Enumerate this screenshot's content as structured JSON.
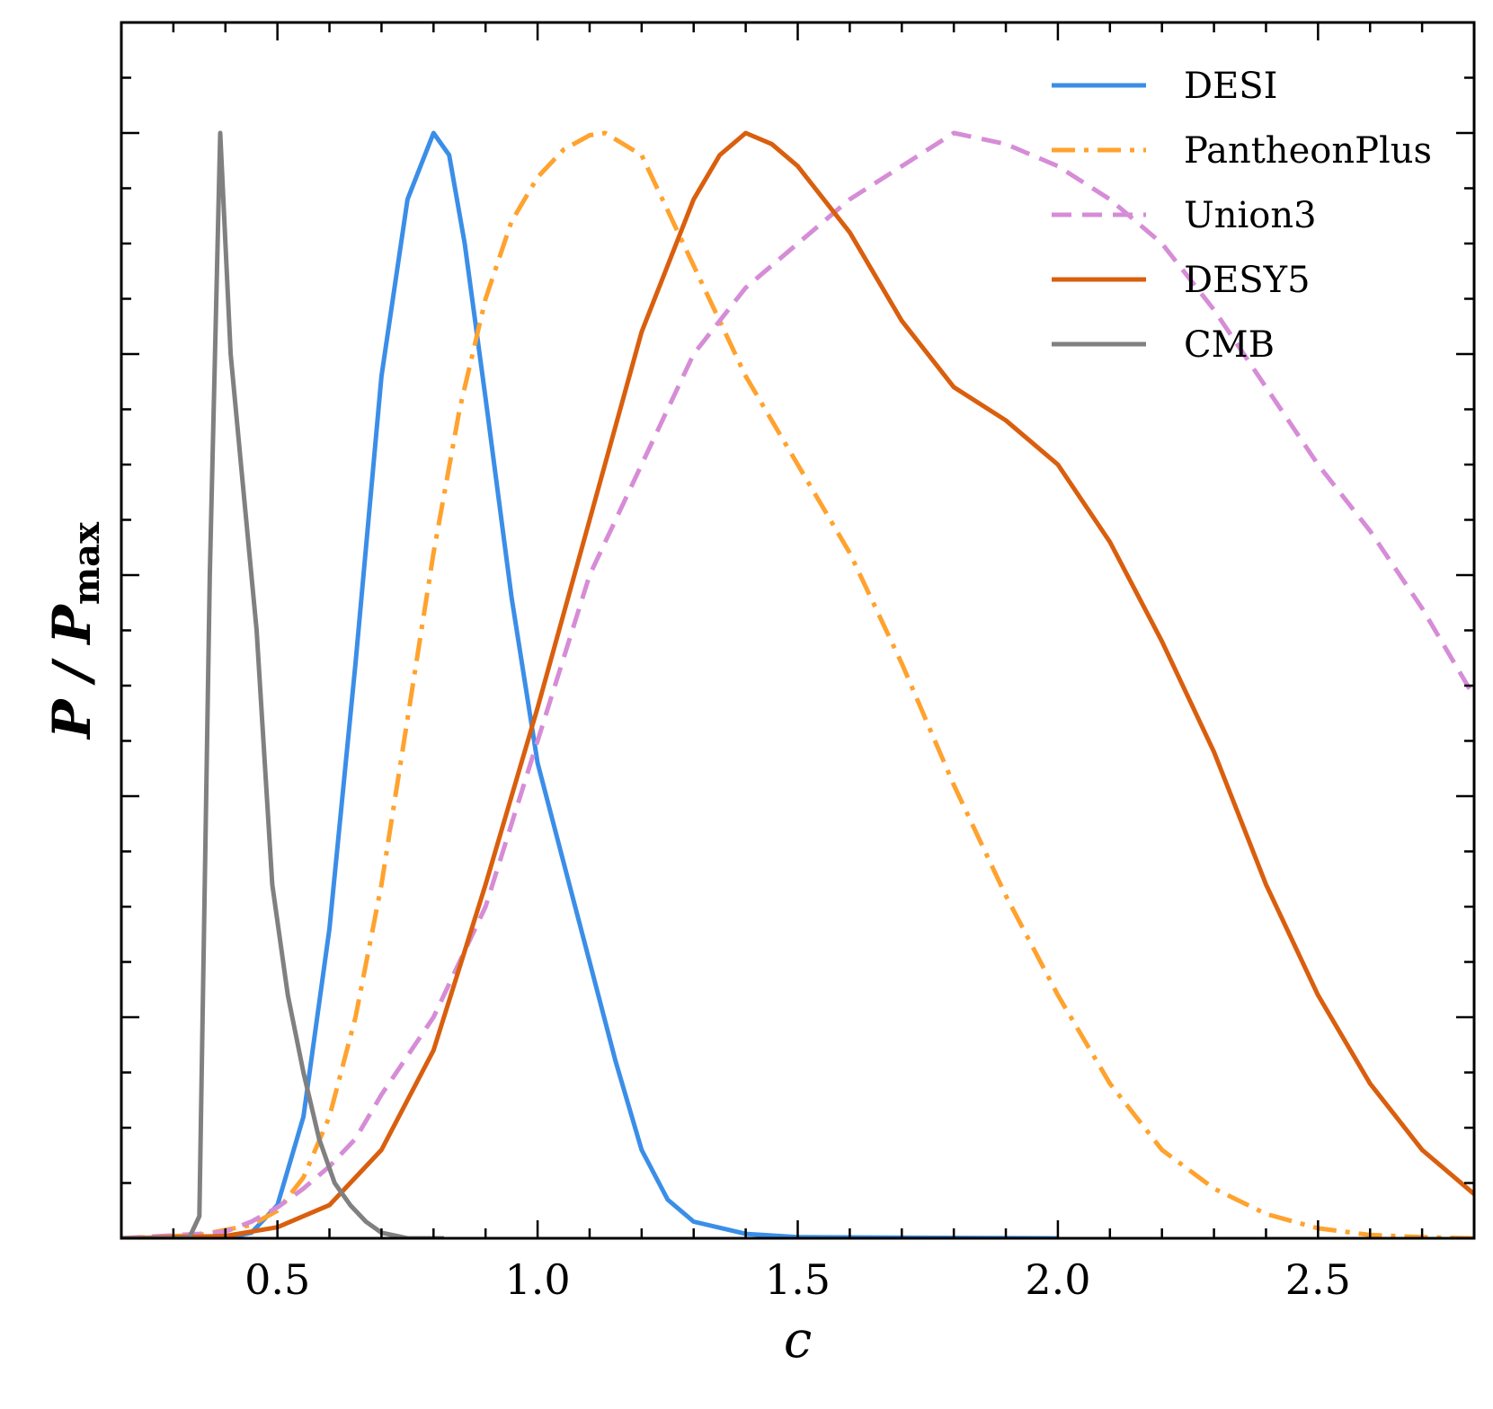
{
  "chart_data": {
    "type": "line",
    "title": "",
    "xlabel": "c",
    "ylabel": "P / P",
    "ylabel_subscript": "max",
    "xlim": [
      0.2,
      2.8
    ],
    "ylim": [
      0,
      1.1
    ],
    "xticks": [
      0.5,
      1.0,
      1.5,
      2.0,
      2.5
    ],
    "xtick_labels": [
      "0.5",
      "1.0",
      "1.5",
      "2.0",
      "2.5"
    ],
    "y_tick_labels_shown": false,
    "grid": false,
    "legend_position": "top-right",
    "series": [
      {
        "name": "DESI",
        "color": "#3b8ee8",
        "style": "solid",
        "points": [
          [
            0.2,
            0
          ],
          [
            0.4,
            0
          ],
          [
            0.45,
            0.005
          ],
          [
            0.5,
            0.03
          ],
          [
            0.55,
            0.11
          ],
          [
            0.6,
            0.28
          ],
          [
            0.65,
            0.52
          ],
          [
            0.7,
            0.78
          ],
          [
            0.75,
            0.94
          ],
          [
            0.8,
            1.0
          ],
          [
            0.83,
            0.98
          ],
          [
            0.86,
            0.9
          ],
          [
            0.9,
            0.76
          ],
          [
            0.95,
            0.58
          ],
          [
            1.0,
            0.43
          ],
          [
            1.05,
            0.34
          ],
          [
            1.1,
            0.25
          ],
          [
            1.15,
            0.16
          ],
          [
            1.2,
            0.08
          ],
          [
            1.25,
            0.035
          ],
          [
            1.3,
            0.015
          ],
          [
            1.4,
            0.004
          ],
          [
            1.5,
            0.001
          ],
          [
            2.0,
            0
          ]
        ]
      },
      {
        "name": "PantheonPlus",
        "color": "#ffa22e",
        "style": "dashdot",
        "points": [
          [
            0.2,
            0
          ],
          [
            0.35,
            0.003
          ],
          [
            0.45,
            0.012
          ],
          [
            0.5,
            0.025
          ],
          [
            0.55,
            0.055
          ],
          [
            0.6,
            0.11
          ],
          [
            0.65,
            0.2
          ],
          [
            0.7,
            0.32
          ],
          [
            0.75,
            0.47
          ],
          [
            0.8,
            0.62
          ],
          [
            0.85,
            0.75
          ],
          [
            0.9,
            0.85
          ],
          [
            0.95,
            0.92
          ],
          [
            1.0,
            0.96
          ],
          [
            1.05,
            0.985
          ],
          [
            1.1,
            0.998
          ],
          [
            1.13,
            1.0
          ],
          [
            1.2,
            0.98
          ],
          [
            1.3,
            0.88
          ],
          [
            1.4,
            0.78
          ],
          [
            1.5,
            0.7
          ],
          [
            1.6,
            0.62
          ],
          [
            1.7,
            0.52
          ],
          [
            1.8,
            0.41
          ],
          [
            1.9,
            0.31
          ],
          [
            2.0,
            0.22
          ],
          [
            2.1,
            0.14
          ],
          [
            2.2,
            0.08
          ],
          [
            2.3,
            0.045
          ],
          [
            2.4,
            0.022
          ],
          [
            2.5,
            0.009
          ],
          [
            2.6,
            0.003
          ],
          [
            2.7,
            0.001
          ],
          [
            2.8,
            0
          ]
        ]
      },
      {
        "name": "Union3",
        "color": "#d68cd6",
        "style": "dashed",
        "points": [
          [
            0.2,
            0
          ],
          [
            0.35,
            0.004
          ],
          [
            0.4,
            0.006
          ],
          [
            0.45,
            0.015
          ],
          [
            0.5,
            0.028
          ],
          [
            0.55,
            0.045
          ],
          [
            0.6,
            0.065
          ],
          [
            0.65,
            0.09
          ],
          [
            0.7,
            0.13
          ],
          [
            0.8,
            0.2
          ],
          [
            0.9,
            0.3
          ],
          [
            1.0,
            0.45
          ],
          [
            1.1,
            0.6
          ],
          [
            1.2,
            0.7
          ],
          [
            1.3,
            0.8
          ],
          [
            1.4,
            0.86
          ],
          [
            1.5,
            0.9
          ],
          [
            1.6,
            0.94
          ],
          [
            1.7,
            0.97
          ],
          [
            1.8,
            1.0
          ],
          [
            1.9,
            0.99
          ],
          [
            2.0,
            0.97
          ],
          [
            2.1,
            0.94
          ],
          [
            2.2,
            0.9
          ],
          [
            2.3,
            0.84
          ],
          [
            2.4,
            0.77
          ],
          [
            2.5,
            0.7
          ],
          [
            2.6,
            0.64
          ],
          [
            2.7,
            0.57
          ],
          [
            2.8,
            0.49
          ]
        ]
      },
      {
        "name": "DESY5",
        "color": "#d95f0e",
        "style": "solid",
        "points": [
          [
            0.2,
            0
          ],
          [
            0.4,
            0.002
          ],
          [
            0.5,
            0.01
          ],
          [
            0.6,
            0.03
          ],
          [
            0.7,
            0.08
          ],
          [
            0.8,
            0.17
          ],
          [
            0.9,
            0.32
          ],
          [
            1.0,
            0.48
          ],
          [
            1.1,
            0.65
          ],
          [
            1.2,
            0.82
          ],
          [
            1.3,
            0.94
          ],
          [
            1.35,
            0.98
          ],
          [
            1.4,
            1.0
          ],
          [
            1.45,
            0.99
          ],
          [
            1.5,
            0.97
          ],
          [
            1.6,
            0.91
          ],
          [
            1.7,
            0.83
          ],
          [
            1.8,
            0.77
          ],
          [
            1.9,
            0.74
          ],
          [
            2.0,
            0.7
          ],
          [
            2.1,
            0.63
          ],
          [
            2.2,
            0.54
          ],
          [
            2.3,
            0.44
          ],
          [
            2.4,
            0.32
          ],
          [
            2.5,
            0.22
          ],
          [
            2.6,
            0.14
          ],
          [
            2.7,
            0.08
          ],
          [
            2.8,
            0.04
          ]
        ]
      },
      {
        "name": "CMB",
        "color": "#808080",
        "style": "solid",
        "points": [
          [
            0.2,
            0
          ],
          [
            0.33,
            0
          ],
          [
            0.35,
            0.02
          ],
          [
            0.37,
            0.6
          ],
          [
            0.39,
            1.0
          ],
          [
            0.41,
            0.8
          ],
          [
            0.43,
            0.7
          ],
          [
            0.46,
            0.55
          ],
          [
            0.49,
            0.32
          ],
          [
            0.52,
            0.22
          ],
          [
            0.55,
            0.15
          ],
          [
            0.58,
            0.09
          ],
          [
            0.61,
            0.05
          ],
          [
            0.64,
            0.03
          ],
          [
            0.67,
            0.015
          ],
          [
            0.7,
            0.005
          ],
          [
            0.75,
            0
          ],
          [
            0.82,
            0
          ]
        ]
      }
    ]
  }
}
